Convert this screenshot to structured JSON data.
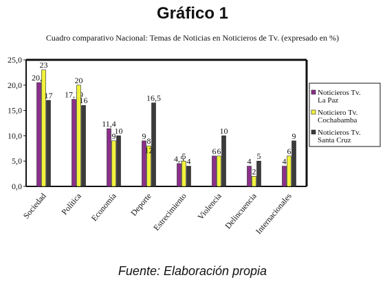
{
  "title": "Gráfico 1",
  "subtitle": "Cuadro comparativo Nacional: Temas de Noticias en Noticieros de Tv. (expresado en %)",
  "source": "Fuente: Elaboración propia",
  "chart_data": {
    "type": "bar",
    "categories": [
      "Sociedad",
      "Política",
      "Economía",
      "Deporte",
      "Estrecimiento",
      "Violencia",
      "Delincuencia",
      "Internacionales"
    ],
    "series": [
      {
        "name": "Noticieros Tv. La Paz",
        "legend_lines": [
          "Noticieros  Tv.",
          "La Paz"
        ],
        "color": "#8b2f8b",
        "values": [
          20.5,
          17.19,
          11.4,
          9,
          4.5,
          6,
          4,
          4
        ],
        "labels": [
          "20,5",
          "17,19",
          "11,4",
          "9",
          "4,5",
          "6",
          "4",
          "4"
        ]
      },
      {
        "name": "Noticiero Tv. Cochabamba",
        "legend_lines": [
          "Noticiero  Tv.",
          "Cochabamba"
        ],
        "color": "#f2f23c",
        "values": [
          23,
          20,
          9,
          8,
          5,
          6,
          2,
          6
        ],
        "labels": [
          "23",
          "20",
          "9",
          "8",
          "5",
          "6",
          "2",
          "6"
        ]
      },
      {
        "name": "Noticieros Tv. Santa Cruz",
        "legend_lines": [
          "Noticieros  Tv.",
          "Santa Cruz"
        ],
        "color": "#3b3b3b",
        "values": [
          17,
          16,
          10,
          16.5,
          4,
          10,
          5,
          9
        ],
        "labels": [
          "17",
          "16",
          "10",
          "16,5",
          "4",
          "10",
          "5",
          "9"
        ]
      }
    ],
    "extra_labels": [
      {
        "category": "Deporte",
        "text": "12"
      }
    ],
    "yticks": [
      "0,0",
      "5,0",
      "10,0",
      "15,0",
      "20,0",
      "25,0"
    ],
    "ylim": [
      0,
      25
    ],
    "grid": false,
    "legend": "right"
  }
}
